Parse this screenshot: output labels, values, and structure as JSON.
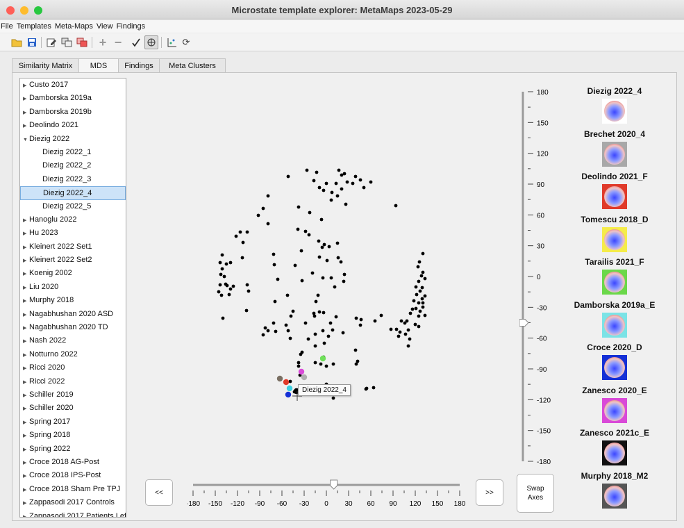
{
  "window": {
    "title": "Microstate template explorer: MetaMaps 2023-05-29"
  },
  "menu": [
    "File",
    "Templates",
    "Meta-Maps",
    "View",
    "Findings"
  ],
  "toolbar": {
    "icons": [
      "folder-open-icon",
      "save-icon",
      "edit-icon",
      "compare-icon",
      "delete-icon",
      "add-icon",
      "remove-icon",
      "check-icon",
      "network-icon",
      "scatter-icon",
      "refresh-icon"
    ]
  },
  "tabs": [
    "Similarity Matrix",
    "MDS",
    "Findings",
    "Meta Clusters"
  ],
  "tree": [
    {
      "label": "Custo 2017",
      "type": "parent"
    },
    {
      "label": "Damborska 2019a",
      "type": "parent"
    },
    {
      "label": "Damborska 2019b",
      "type": "parent"
    },
    {
      "label": "Deolindo 2021",
      "type": "parent"
    },
    {
      "label": "Diezig 2022",
      "type": "expanded"
    },
    {
      "label": "Diezig 2022_1",
      "type": "child"
    },
    {
      "label": "Diezig 2022_2",
      "type": "child"
    },
    {
      "label": "Diezig 2022_3",
      "type": "child"
    },
    {
      "label": "Diezig 2022_4",
      "type": "selected"
    },
    {
      "label": "Diezig 2022_5",
      "type": "child"
    },
    {
      "label": "Hanoglu 2022",
      "type": "parent"
    },
    {
      "label": "Hu 2023",
      "type": "parent"
    },
    {
      "label": "Kleinert 2022 Set1",
      "type": "parent"
    },
    {
      "label": "Kleinert 2022 Set2",
      "type": "parent"
    },
    {
      "label": "Koenig 2002",
      "type": "parent"
    },
    {
      "label": "Liu 2020",
      "type": "parent"
    },
    {
      "label": "Murphy 2018",
      "type": "parent"
    },
    {
      "label": "Nagabhushan 2020 ASD",
      "type": "parent"
    },
    {
      "label": "Nagabhushan 2020 TD",
      "type": "parent"
    },
    {
      "label": "Nash 2022",
      "type": "parent"
    },
    {
      "label": "Notturno 2022",
      "type": "parent"
    },
    {
      "label": "Ricci 2020",
      "type": "parent"
    },
    {
      "label": "Ricci 2022",
      "type": "parent"
    },
    {
      "label": "Schiller 2019",
      "type": "parent"
    },
    {
      "label": "Schiller 2020",
      "type": "parent"
    },
    {
      "label": "Spring 2017",
      "type": "parent"
    },
    {
      "label": "Spring 2018",
      "type": "parent"
    },
    {
      "label": "Spring 2022",
      "type": "parent"
    },
    {
      "label": "Croce 2018 AG-Post",
      "type": "parent"
    },
    {
      "label": "Croce 2018 IPS-Post",
      "type": "parent"
    },
    {
      "label": "Croce 2018 Sham Pre TPJ",
      "type": "parent"
    },
    {
      "label": "Zappasodi 2017 Controls",
      "type": "parent"
    },
    {
      "label": "Zappasodi 2017 Patients Lef",
      "type": "parent"
    }
  ],
  "tooltip": "Diezig 2022_4",
  "vslider": {
    "ticks": [
      "180",
      "150",
      "120",
      "90",
      "60",
      "30",
      "0",
      "-30",
      "-60",
      "-90",
      "-120",
      "-150",
      "-180"
    ],
    "value": -45
  },
  "hslider": {
    "ticks": [
      "-180",
      "-150",
      "-120",
      "-90",
      "-60",
      "-30",
      "0",
      "30",
      "60",
      "90",
      "120",
      "150",
      "180"
    ],
    "value": 10
  },
  "buttons": {
    "prev": "<<",
    "next": ">>",
    "swap": "Swap Axes"
  },
  "meta_clusters": [
    {
      "label": "Diezig 2022_4",
      "bg": "#ffffff"
    },
    {
      "label": "Brechet 2020_4",
      "bg": "#a8a8a8"
    },
    {
      "label": "Deolindo 2021_F",
      "bg": "#e03a2a"
    },
    {
      "label": "Tomescu 2018_D",
      "bg": "#f5ec4a"
    },
    {
      "label": "Tarailis 2021_F",
      "bg": "#6bd84a"
    },
    {
      "label": "Damborska 2019a_E",
      "bg": "#7be3e6"
    },
    {
      "label": "Croce 2020_D",
      "bg": "#1530d6"
    },
    {
      "label": "Zanesco 2020_E",
      "bg": "#d94ad8"
    },
    {
      "label": "Zanesco 2021c_E",
      "bg": "#111111"
    },
    {
      "label": "Murphy 2018_M2",
      "bg": "#555555"
    }
  ],
  "scatter_colors": {
    "default": "#000000",
    "highlight": [
      "#7a6f63",
      "#e03a2a",
      "#3ccfe0",
      "#1530d6",
      "#d94ad8",
      "#b0b0b0",
      "#6fe05a"
    ]
  }
}
